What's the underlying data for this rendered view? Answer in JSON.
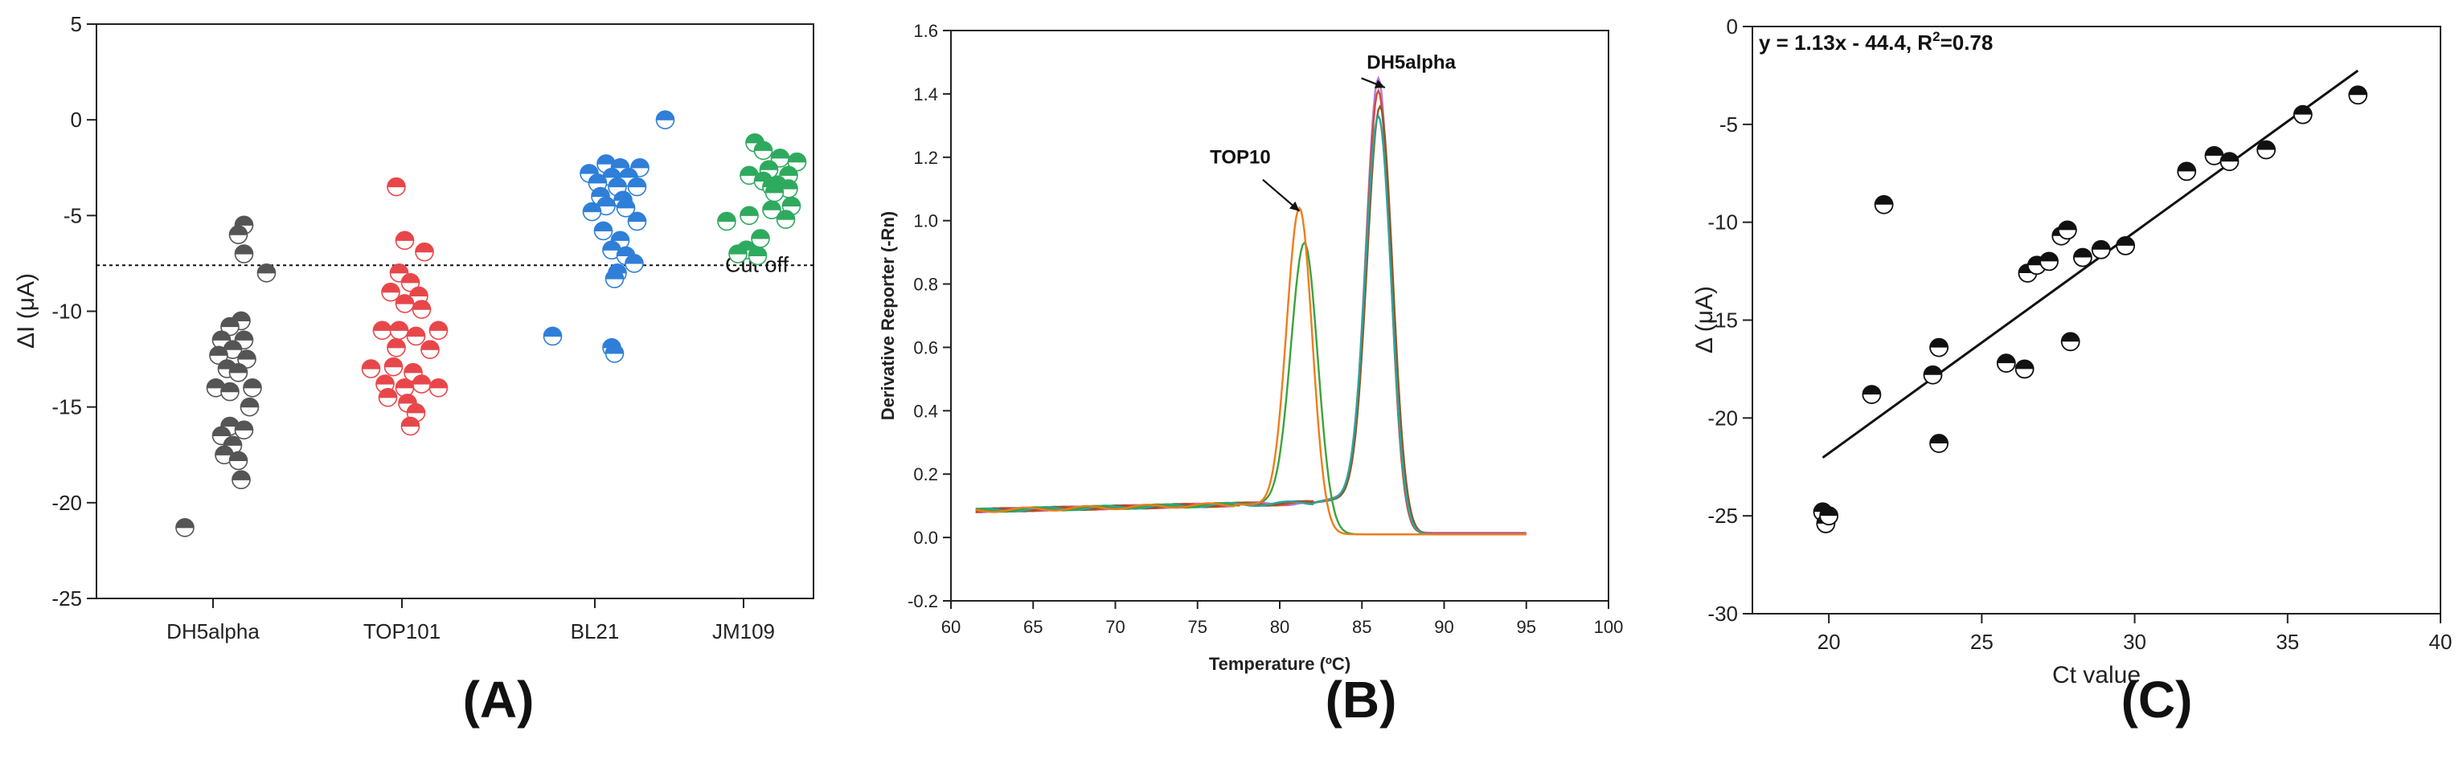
{
  "chart_data": [
    {
      "panel": "(A)",
      "type": "scatter",
      "xlabel": "",
      "ylabel": "ΔI (μA)",
      "ylim": [
        -25,
        5
      ],
      "yticks": [
        5,
        0,
        -5,
        -10,
        -15,
        -20,
        -25
      ],
      "categories": [
        "DH5alpha",
        "TOP101",
        "BL21",
        "JM109"
      ],
      "cutoff": {
        "value": -7.6,
        "label": "Cut off"
      },
      "series": [
        {
          "name": "DH5alpha",
          "color": "#555555",
          "points": [
            [
              0.55,
              -5.5
            ],
            [
              0.45,
              -6
            ],
            [
              0.55,
              -7
            ],
            [
              0.95,
              -8
            ],
            [
              0.5,
              -10.5
            ],
            [
              0.3,
              -10.8
            ],
            [
              0.15,
              -11.5
            ],
            [
              0.55,
              -11.5
            ],
            [
              0.35,
              -12
            ],
            [
              0.1,
              -12.3
            ],
            [
              0.6,
              -12.5
            ],
            [
              0.25,
              -13
            ],
            [
              0.45,
              -13.2
            ],
            [
              0.7,
              -14
            ],
            [
              0.05,
              -14
            ],
            [
              0.3,
              -14.2
            ],
            [
              0.65,
              -15
            ],
            [
              0.3,
              -16
            ],
            [
              0.55,
              -16.2
            ],
            [
              0.15,
              -16.5
            ],
            [
              0.35,
              -17
            ],
            [
              0.2,
              -17.5
            ],
            [
              0.45,
              -17.8
            ],
            [
              0.5,
              -18.8
            ],
            [
              -0.5,
              -21.3
            ]
          ]
        },
        {
          "name": "TOP101",
          "color": "#E8474A",
          "points": [
            [
              -0.1,
              -3.5
            ],
            [
              0.05,
              -6.3
            ],
            [
              0.4,
              -6.9
            ],
            [
              -0.05,
              -8
            ],
            [
              0.15,
              -8.5
            ],
            [
              -0.2,
              -9
            ],
            [
              0.3,
              -9.2
            ],
            [
              0.05,
              -9.6
            ],
            [
              0.35,
              -9.9
            ],
            [
              -0.35,
              -11
            ],
            [
              -0.05,
              -11
            ],
            [
              0.25,
              -11.3
            ],
            [
              0.65,
              -11
            ],
            [
              -0.1,
              -11.9
            ],
            [
              0.5,
              -12
            ],
            [
              -0.55,
              -13
            ],
            [
              -0.15,
              -12.9
            ],
            [
              0.2,
              -13.2
            ],
            [
              -0.3,
              -13.8
            ],
            [
              0.35,
              -13.8
            ],
            [
              0.05,
              -14
            ],
            [
              0.65,
              -14
            ],
            [
              -0.25,
              -14.5
            ],
            [
              0.1,
              -14.8
            ],
            [
              0.25,
              -15.3
            ],
            [
              0.15,
              -16
            ]
          ]
        },
        {
          "name": "BL21",
          "color": "#2F7FD9",
          "points": [
            [
              1.25,
              0
            ],
            [
              0.2,
              -2.3
            ],
            [
              0.45,
              -2.5
            ],
            [
              0.8,
              -2.5
            ],
            [
              -0.1,
              -2.8
            ],
            [
              0.3,
              -3
            ],
            [
              0.6,
              -3
            ],
            [
              0.05,
              -3.3
            ],
            [
              0.4,
              -3.5
            ],
            [
              0.75,
              -3.5
            ],
            [
              0.1,
              -4
            ],
            [
              0.5,
              -4.2
            ],
            [
              0.2,
              -4.5
            ],
            [
              0.55,
              -4.6
            ],
            [
              -0.05,
              -4.8
            ],
            [
              0.75,
              -5.3
            ],
            [
              0.15,
              -5.8
            ],
            [
              0.45,
              -6.3
            ],
            [
              0.3,
              -6.8
            ],
            [
              0.55,
              -7.1
            ],
            [
              0.7,
              -7.5
            ],
            [
              0.4,
              -8
            ],
            [
              0.35,
              -8.3
            ],
            [
              -0.75,
              -11.3
            ],
            [
              0.3,
              -11.9
            ],
            [
              0.35,
              -12.2
            ]
          ]
        },
        {
          "name": "JM109",
          "color": "#2EAA5E",
          "points": [
            [
              0.2,
              -1.2
            ],
            [
              0.35,
              -1.6
            ],
            [
              0.65,
              -2
            ],
            [
              0.95,
              -2.2
            ],
            [
              0.45,
              -2.6
            ],
            [
              0.1,
              -2.9
            ],
            [
              0.8,
              -2.9
            ],
            [
              0.35,
              -3.2
            ],
            [
              0.6,
              -3.4
            ],
            [
              0.5,
              -3.5
            ],
            [
              0.8,
              -3.6
            ],
            [
              0.55,
              -3.8
            ],
            [
              0.85,
              -4.5
            ],
            [
              0.5,
              -4.7
            ],
            [
              0.1,
              -5
            ],
            [
              0.75,
              -5.2
            ],
            [
              -0.3,
              -5.3
            ],
            [
              0.3,
              -6.2
            ],
            [
              0.05,
              -6.8
            ],
            [
              -0.1,
              -7
            ],
            [
              0.25,
              -7.1
            ]
          ]
        }
      ]
    },
    {
      "panel": "(B)",
      "type": "line",
      "xlabel": "Temperature (ºC)",
      "ylabel": "Derivative Reporter (-Rn)",
      "xlim": [
        60,
        100
      ],
      "ylim": [
        -0.2,
        1.6
      ],
      "xticks": [
        60,
        65,
        70,
        75,
        80,
        85,
        90,
        95,
        100
      ],
      "yticks": [
        -0.2,
        0.0,
        0.2,
        0.4,
        0.6,
        0.8,
        1.0,
        1.2,
        1.4,
        1.6
      ],
      "annotations": [
        {
          "text": "TOP10",
          "arrow_to": [
            81.2,
            1.03
          ],
          "text_at": [
            77.6,
            1.18
          ]
        },
        {
          "text": "DH5alpha",
          "arrow_to": [
            86.4,
            1.42
          ],
          "text_at": [
            88.0,
            1.48
          ]
        }
      ],
      "series": [
        {
          "name": "DH5alpha (purple)",
          "color": "#B57EDC",
          "peak_x": 86.0,
          "peak_y": 1.45,
          "width": 1.05,
          "plateau": 0.155,
          "baseline_after": 0.015
        },
        {
          "name": "DH5alpha (red)",
          "color": "#D24B3A",
          "peak_x": 86.0,
          "peak_y": 1.41,
          "width": 1.05,
          "plateau": 0.15,
          "baseline_after": 0.012
        },
        {
          "name": "DH5alpha (brown)",
          "color": "#8A5A2B",
          "peak_x": 86.1,
          "peak_y": 1.36,
          "width": 1.1,
          "plateau": 0.14,
          "baseline_after": 0.01
        },
        {
          "name": "DH5alpha (teal)",
          "color": "#2AA6A0",
          "peak_x": 86.0,
          "peak_y": 1.33,
          "width": 1.1,
          "plateau": 0.145,
          "baseline_after": 0.01
        },
        {
          "name": "TOP10 (green)",
          "color": "#3BA33B",
          "peak_x": 81.5,
          "peak_y": 0.93,
          "width": 1.15,
          "plateau": 0.12,
          "baseline_after": 0.01
        },
        {
          "name": "TOP10 (orange)",
          "color": "#F07C1A",
          "peak_x": 81.2,
          "peak_y": 1.04,
          "width": 1.1,
          "plateau": 0.11,
          "baseline_after": 0.01
        }
      ]
    },
    {
      "panel": "(C)",
      "type": "scatter",
      "xlabel": "Ct value",
      "ylabel": "Δ (μA)",
      "xlim": [
        17.5,
        40
      ],
      "ylim": [
        -30,
        0
      ],
      "xticks": [
        20,
        25,
        30,
        35,
        40
      ],
      "yticks": [
        0,
        -5,
        -10,
        -15,
        -20,
        -25,
        -30
      ],
      "fit": {
        "slope": 1.13,
        "intercept": -44.4,
        "x_range": [
          19.8,
          37.3
        ],
        "r2": 0.78
      },
      "equation": "y = 1.13x - 44.4, R",
      "equation_sup": "2",
      "equation_tail": "=0.78",
      "points": [
        [
          19.8,
          -24.8
        ],
        [
          19.9,
          -25.4
        ],
        [
          20.0,
          -25.0
        ],
        [
          21.4,
          -18.8
        ],
        [
          21.8,
          -9.1
        ],
        [
          23.4,
          -17.8
        ],
        [
          23.6,
          -16.4
        ],
        [
          23.6,
          -21.3
        ],
        [
          25.8,
          -17.2
        ],
        [
          26.4,
          -17.5
        ],
        [
          26.5,
          -12.6
        ],
        [
          26.8,
          -12.2
        ],
        [
          27.2,
          -12.0
        ],
        [
          27.6,
          -10.7
        ],
        [
          27.8,
          -10.4
        ],
        [
          27.9,
          -16.1
        ],
        [
          28.3,
          -11.8
        ],
        [
          28.9,
          -11.4
        ],
        [
          29.7,
          -11.2
        ],
        [
          31.7,
          -7.4
        ],
        [
          32.6,
          -6.6
        ],
        [
          33.1,
          -6.9
        ],
        [
          34.3,
          -6.3
        ],
        [
          35.5,
          -4.5
        ],
        [
          37.3,
          -3.5
        ]
      ]
    }
  ],
  "panel_labels": [
    "(A)",
    "(B)",
    "(C)"
  ]
}
